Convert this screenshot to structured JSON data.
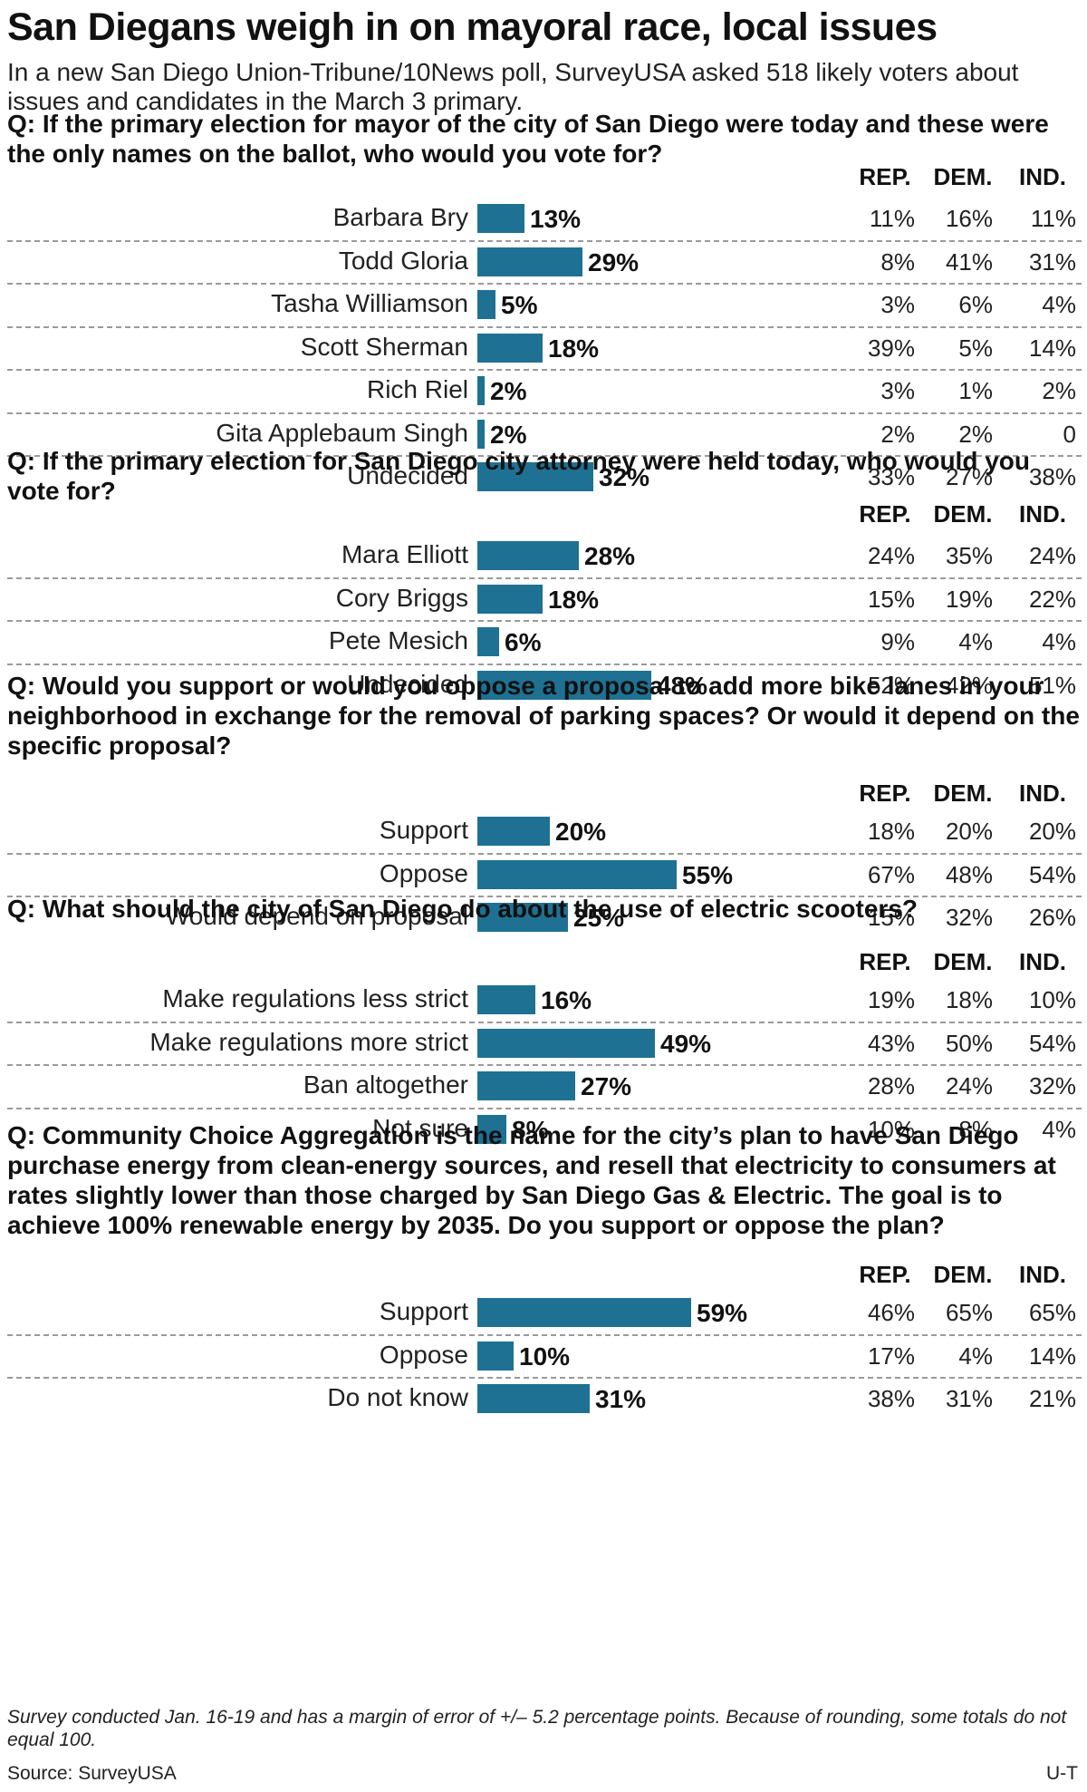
{
  "title": "San Diegans weigh in on mayoral race, local issues",
  "subtitle": "In a new San Diego Union-Tribune/10News poll, SurveyUSA asked 518 likely voters about issues and candidates in the March 3 primary.",
  "columns": {
    "rep": "REP.",
    "dem": "DEM.",
    "ind": "IND."
  },
  "bar_color": "#1e7193",
  "chart_data": [
    {
      "type": "bar",
      "question": "Q: If the primary election for mayor of the city of San Diego were today and these were the only names on the ballot, who would you vote for?",
      "categories": [
        "Barbara Bry",
        "Todd Gloria",
        "Tasha Williamson",
        "Scott Sherman",
        "Rich Riel",
        "Gita Applebaum Singh",
        "Undecided"
      ],
      "values": [
        13,
        29,
        5,
        18,
        2,
        2,
        32
      ],
      "value_labels": [
        "13%",
        "29%",
        "5%",
        "18%",
        "2%",
        "2%",
        "32%"
      ],
      "breakdown": {
        "rep": [
          "11%",
          "8%",
          "3%",
          "39%",
          "3%",
          "2%",
          "33%"
        ],
        "dem": [
          "16%",
          "41%",
          "6%",
          "5%",
          "1%",
          "2%",
          "27%"
        ],
        "ind": [
          "11%",
          "31%",
          "4%",
          "14%",
          "2%",
          "0",
          "38%"
        ]
      }
    },
    {
      "type": "bar",
      "question": "Q: If the primary election for San Diego city attorney were held today, who would you vote for?",
      "categories": [
        "Mara Elliott",
        "Cory Briggs",
        "Pete Mesich",
        "Undecided"
      ],
      "values": [
        28,
        18,
        6,
        48
      ],
      "value_labels": [
        "28%",
        "18%",
        "6%",
        "48%"
      ],
      "breakdown": {
        "rep": [
          "24%",
          "15%",
          "9%",
          "52%"
        ],
        "dem": [
          "35%",
          "19%",
          "4%",
          "42%"
        ],
        "ind": [
          "24%",
          "22%",
          "4%",
          "51%"
        ]
      }
    },
    {
      "type": "bar",
      "question": "Q: Would you support or would you oppose a proposal to add more bike lanes in your neighborhood in exchange for the removal of parking spaces? Or would it depend on the specific proposal?",
      "categories": [
        "Support",
        "Oppose",
        "Would depend on proposal"
      ],
      "values": [
        20,
        55,
        25
      ],
      "value_labels": [
        "20%",
        "55%",
        "25%"
      ],
      "breakdown": {
        "rep": [
          "18%",
          "67%",
          "15%"
        ],
        "dem": [
          "20%",
          "48%",
          "32%"
        ],
        "ind": [
          "20%",
          "54%",
          "26%"
        ]
      }
    },
    {
      "type": "bar",
      "question": "Q: What should the city of San Diego do about the use of electric scooters?",
      "categories": [
        "Make regulations less strict",
        "Make regulations more strict",
        "Ban altogether",
        "Not sure"
      ],
      "values": [
        16,
        49,
        27,
        8
      ],
      "value_labels": [
        "16%",
        "49%",
        "27%",
        "8%"
      ],
      "breakdown": {
        "rep": [
          "19%",
          "43%",
          "28%",
          "10%"
        ],
        "dem": [
          "18%",
          "50%",
          "24%",
          "8%"
        ],
        "ind": [
          "10%",
          "54%",
          "32%",
          "4%"
        ]
      }
    },
    {
      "type": "bar",
      "question": "Q: Community Choice Aggregation is the name for the city’s plan to have San Diego purchase energy from clean-energy sources, and resell that electricity to consumers at rates slightly lower than those charged by San Diego Gas & Electric. The goal is to achieve 100% renewable energy by 2035. Do you support or oppose the plan?",
      "categories": [
        "Support",
        "Oppose",
        "Do not know"
      ],
      "values": [
        59,
        10,
        31
      ],
      "value_labels": [
        "59%",
        "10%",
        "31%"
      ],
      "breakdown": {
        "rep": [
          "46%",
          "17%",
          "38%"
        ],
        "dem": [
          "65%",
          "4%",
          "31%"
        ],
        "ind": [
          "65%",
          "14%",
          "21%"
        ]
      }
    }
  ],
  "note": "Survey conducted Jan. 16-19 and has a margin of error of +/– 5.2 percentage points. Because of rounding, some totals do not equal 100.",
  "source": "Source: SurveyUSA",
  "credit": "U-T"
}
